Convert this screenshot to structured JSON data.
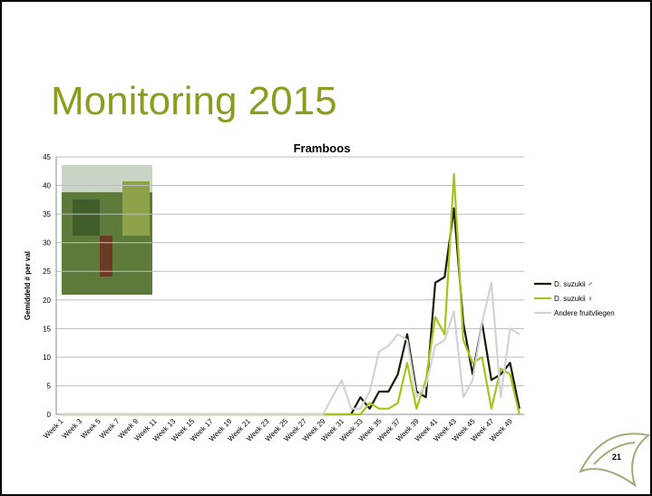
{
  "slide": {
    "title": "Monitoring 2015",
    "page_number": "21"
  },
  "chart_data": {
    "type": "line",
    "title": "Framboos",
    "y_label": "Gemiddeld # per val",
    "categories": [
      "Week 1",
      null,
      "Week 3",
      null,
      "Week 5",
      null,
      "Week 7",
      null,
      "Week 9",
      null,
      "Week 11",
      null,
      "Week 13",
      null,
      "Week 15",
      null,
      "Week 17",
      null,
      "Week 19",
      null,
      "Week 21",
      null,
      "Week 23",
      null,
      "Week 25",
      null,
      "Week 27",
      null,
      "Week 29",
      null,
      "Week 31",
      null,
      "Week 33",
      null,
      "Week 35",
      null,
      "Week 37",
      null,
      "Week 39",
      null,
      "Week 41",
      null,
      "Week 43",
      null,
      "Week 45",
      null,
      "Week 47",
      null,
      "Week 49",
      null
    ],
    "series": [
      {
        "name": "D. suzukii ♂",
        "color": "#1a1a0a",
        "values": [
          0,
          0,
          0,
          0,
          0,
          0,
          0,
          0,
          0,
          0,
          0,
          0,
          0,
          0,
          0,
          0,
          0,
          0,
          0,
          0,
          0,
          0,
          0,
          0,
          0,
          0,
          0,
          0,
          0,
          0,
          0,
          0,
          3,
          1,
          4,
          4,
          7,
          14,
          4,
          3,
          23,
          24,
          36,
          16,
          7,
          16,
          6,
          7,
          9,
          1
        ]
      },
      {
        "name": "D. suzukii ♀",
        "color": "#a8c41a",
        "values": [
          0,
          0,
          0,
          0,
          0,
          0,
          0,
          0,
          0,
          0,
          0,
          0,
          0,
          0,
          0,
          0,
          0,
          0,
          0,
          0,
          0,
          0,
          0,
          0,
          0,
          0,
          0,
          0,
          0,
          0,
          0,
          0,
          0,
          2,
          1,
          1,
          2,
          9,
          1,
          6,
          17,
          14,
          42,
          13,
          9,
          10,
          1,
          8,
          7,
          0
        ]
      },
      {
        "name": "Andere fruitvliegen",
        "color": "#d3d3d3",
        "values": [
          0,
          0,
          0,
          0,
          0,
          0,
          0,
          0,
          0,
          0,
          0,
          0,
          0,
          0,
          0,
          0,
          0,
          0,
          0,
          0,
          0,
          0,
          0,
          0,
          0,
          0,
          0,
          0,
          0,
          3,
          6,
          1,
          1,
          4,
          11,
          12,
          14,
          13,
          3,
          5,
          12,
          13,
          18,
          3,
          6,
          16,
          23,
          3,
          15,
          14
        ]
      }
    ],
    "ylim": [
      0,
      45
    ],
    "yticks": [
      0,
      5,
      10,
      15,
      20,
      25,
      30,
      35,
      40,
      45
    ],
    "grid": true,
    "legend": "right"
  }
}
